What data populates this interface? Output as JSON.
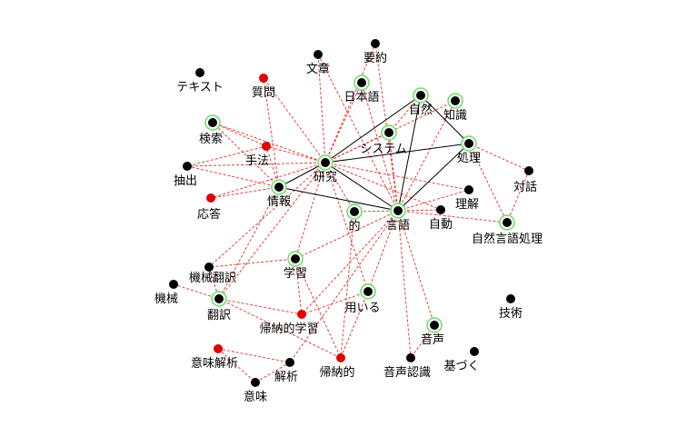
{
  "colors": {
    "black_node": "#000000",
    "red_node": "#e00000",
    "ring": "#66dd66",
    "solid_edge": "#000000",
    "dashed_edge": "#dd2222"
  },
  "nodes": [
    {
      "id": "テキスト",
      "type": "black",
      "ring": false
    },
    {
      "id": "文章",
      "type": "black",
      "ring": false
    },
    {
      "id": "要約",
      "type": "black",
      "ring": false
    },
    {
      "id": "質問",
      "type": "red",
      "ring": false
    },
    {
      "id": "日本語",
      "type": "black",
      "ring": true
    },
    {
      "id": "自然",
      "type": "black",
      "ring": true
    },
    {
      "id": "知識",
      "type": "black",
      "ring": true
    },
    {
      "id": "検索",
      "type": "black",
      "ring": true
    },
    {
      "id": "システム",
      "type": "black",
      "ring": true
    },
    {
      "id": "手法",
      "type": "red",
      "ring": false
    },
    {
      "id": "処理",
      "type": "black",
      "ring": true
    },
    {
      "id": "研究",
      "type": "black",
      "ring": true
    },
    {
      "id": "抽出",
      "type": "black",
      "ring": false
    },
    {
      "id": "対話",
      "type": "black",
      "ring": false
    },
    {
      "id": "情報",
      "type": "black",
      "ring": true
    },
    {
      "id": "理解",
      "type": "black",
      "ring": false
    },
    {
      "id": "応答",
      "type": "red",
      "ring": false
    },
    {
      "id": "的",
      "type": "black",
      "ring": true
    },
    {
      "id": "言語",
      "type": "black",
      "ring": true
    },
    {
      "id": "自動",
      "type": "black",
      "ring": false
    },
    {
      "id": "自然言語処理",
      "type": "black",
      "ring": true
    },
    {
      "id": "学習",
      "type": "black",
      "ring": true
    },
    {
      "id": "機械翻訳",
      "type": "black",
      "ring": false
    },
    {
      "id": "機械",
      "type": "black",
      "ring": false
    },
    {
      "id": "用いる",
      "type": "black",
      "ring": true
    },
    {
      "id": "翻訳",
      "type": "black",
      "ring": true
    },
    {
      "id": "技術",
      "type": "black",
      "ring": false
    },
    {
      "id": "帰納的学習",
      "type": "red",
      "ring": false
    },
    {
      "id": "音声",
      "type": "black",
      "ring": true
    },
    {
      "id": "基づく",
      "type": "black",
      "ring": false
    },
    {
      "id": "意味解析",
      "type": "red",
      "ring": false
    },
    {
      "id": "解析",
      "type": "black",
      "ring": false
    },
    {
      "id": "帰納的",
      "type": "red",
      "ring": false
    },
    {
      "id": "音声認識",
      "type": "black",
      "ring": false
    },
    {
      "id": "意味",
      "type": "black",
      "ring": false
    }
  ],
  "solid_edges": [
    [
      "研究",
      "自然"
    ],
    [
      "研究",
      "処理"
    ],
    [
      "研究",
      "言語"
    ],
    [
      "研究",
      "情報"
    ],
    [
      "情報",
      "言語"
    ],
    [
      "言語",
      "自然"
    ],
    [
      "言語",
      "処理"
    ],
    [
      "自然",
      "処理"
    ]
  ],
  "dashed_edges": [
    [
      "研究",
      "質問"
    ],
    [
      "研究",
      "文章"
    ],
    [
      "研究",
      "日本語"
    ],
    [
      "研究",
      "検索"
    ],
    [
      "研究",
      "手法"
    ],
    [
      "研究",
      "抽出"
    ],
    [
      "研究",
      "応答"
    ],
    [
      "研究",
      "的"
    ],
    [
      "研究",
      "理解"
    ],
    [
      "研究",
      "自動"
    ],
    [
      "研究",
      "システム"
    ],
    [
      "研究",
      "学習"
    ],
    [
      "研究",
      "機械翻訳"
    ],
    [
      "研究",
      "要約"
    ],
    [
      "研究",
      "知識"
    ],
    [
      "研究",
      "用いる"
    ],
    [
      "研究",
      "翻訳"
    ],
    [
      "言語",
      "自然言語処理"
    ],
    [
      "言語",
      "自動"
    ],
    [
      "言語",
      "理解"
    ],
    [
      "言語",
      "知識"
    ],
    [
      "言語",
      "システム"
    ],
    [
      "言語",
      "日本語"
    ],
    [
      "言語",
      "要約"
    ],
    [
      "言語",
      "音声"
    ],
    [
      "言語",
      "音声認識"
    ],
    [
      "言語",
      "用いる"
    ],
    [
      "言語",
      "学習"
    ],
    [
      "言語",
      "的"
    ],
    [
      "言語",
      "文章"
    ],
    [
      "言語",
      "帰納的学習"
    ],
    [
      "言語",
      "解析"
    ],
    [
      "処理",
      "対話"
    ],
    [
      "処理",
      "自然言語処理"
    ],
    [
      "対話",
      "自然言語処理"
    ],
    [
      "システム",
      "自然"
    ],
    [
      "情報",
      "検索"
    ],
    [
      "情報",
      "抽出"
    ],
    [
      "情報",
      "応答"
    ],
    [
      "情報",
      "手法"
    ],
    [
      "情報",
      "質問"
    ],
    [
      "情報",
      "翻訳"
    ],
    [
      "手法",
      "検索"
    ],
    [
      "手法",
      "抽出"
    ],
    [
      "学習",
      "機械翻訳"
    ],
    [
      "学習",
      "帰納的学習"
    ],
    [
      "学習",
      "帰納的"
    ],
    [
      "機械",
      "翻訳"
    ],
    [
      "機械翻訳",
      "翻訳"
    ],
    [
      "翻訳",
      "帰納的学習"
    ],
    [
      "翻訳",
      "帰納的"
    ],
    [
      "用いる",
      "帰納的学習"
    ],
    [
      "用いる",
      "帰納的"
    ],
    [
      "的",
      "帰納的"
    ],
    [
      "意味解析",
      "解析"
    ],
    [
      "意味解析",
      "意味"
    ],
    [
      "解析",
      "意味"
    ],
    [
      "音声",
      "音声認識"
    ]
  ]
}
